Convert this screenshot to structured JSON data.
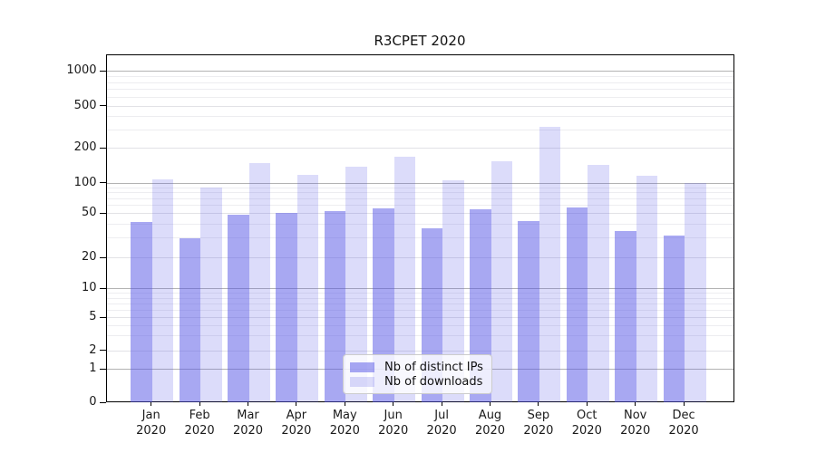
{
  "chart_data": {
    "type": "bar",
    "title": "R3CPET 2020",
    "categories": [
      "Jan",
      "Feb",
      "Mar",
      "Apr",
      "May",
      "Jun",
      "Jul",
      "Aug",
      "Sep",
      "Oct",
      "Nov",
      "Dec"
    ],
    "year_label": "2020",
    "series": [
      {
        "name": "Nb of distinct IPs",
        "values": [
          42,
          30,
          49,
          51,
          53,
          57,
          37,
          55,
          43,
          58,
          35,
          32
        ],
        "color": "rgba(81,81,229,0.5)"
      },
      {
        "name": "Nb of downloads",
        "values": [
          108,
          92,
          152,
          120,
          141,
          172,
          106,
          156,
          320,
          146,
          117,
          101
        ],
        "color": "rgba(81,81,229,0.2)"
      }
    ],
    "legend": [
      "Nb of distinct IPs",
      "Nb of downloads"
    ],
    "legend_position": "lower center",
    "yticks": [
      0,
      1,
      2,
      5,
      10,
      20,
      50,
      100,
      200,
      500,
      1000
    ],
    "yscale": "log-like with 0 baseline",
    "ylim": [
      0,
      1400
    ],
    "grid": true,
    "colors": {
      "major_grid": "#b3b3b3",
      "tick_grid": "#e2e2e6",
      "minor_grid": "#ededf0",
      "axis": "#000000",
      "text": "#1a1a1a"
    }
  }
}
